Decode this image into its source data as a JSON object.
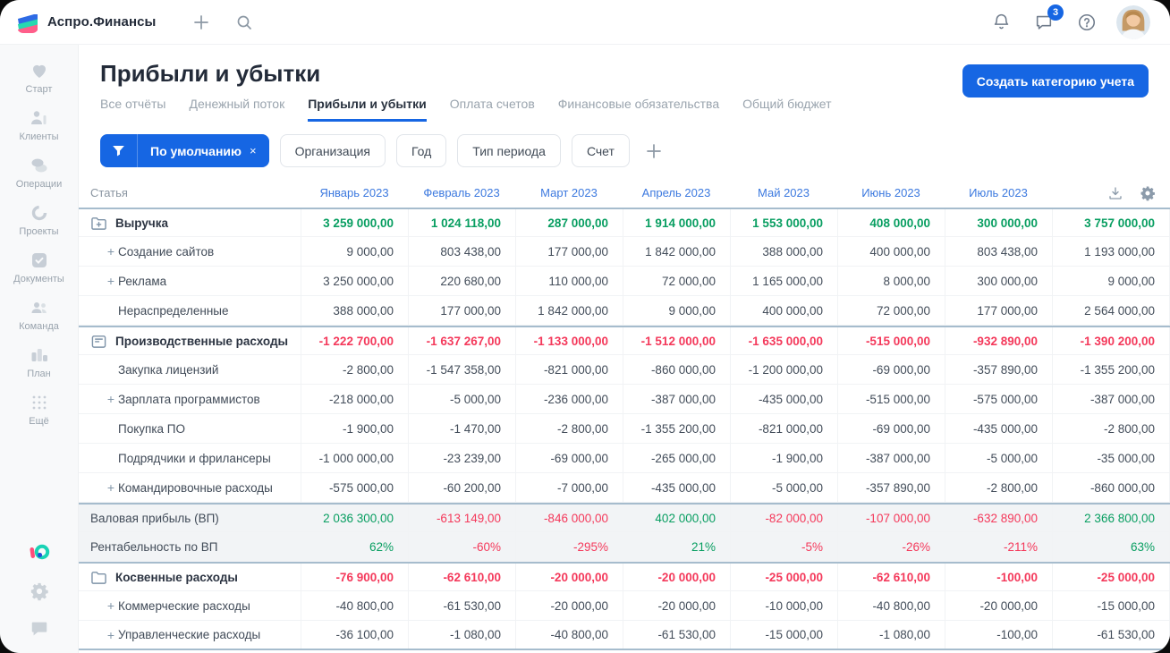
{
  "topbar": {
    "app_name": "Аспро.Финансы",
    "notifications_badge": "3",
    "icons": [
      "plus-icon",
      "search-icon",
      "bell-icon",
      "chat-icon",
      "help-icon",
      "avatar"
    ]
  },
  "sidebar": {
    "items": [
      {
        "label": "Старт",
        "icon": "start-icon"
      },
      {
        "label": "Клиенты",
        "icon": "clients-icon"
      },
      {
        "label": "Операции",
        "icon": "operations-icon"
      },
      {
        "label": "Проекты",
        "icon": "projects-icon"
      },
      {
        "label": "Документы",
        "icon": "documents-icon"
      },
      {
        "label": "Команда",
        "icon": "team-icon"
      },
      {
        "label": "План",
        "icon": "plan-icon"
      },
      {
        "label": "Ещё",
        "icon": "more-icon"
      }
    ],
    "bottom_icons": [
      "brand-icon",
      "gear-icon",
      "chat-bubble-icon"
    ]
  },
  "header": {
    "title": "Прибыли и убытки",
    "create_button": "Создать категорию учета",
    "tabs": [
      {
        "label": "Все отчёты",
        "active": false
      },
      {
        "label": "Денежный поток",
        "active": false
      },
      {
        "label": "Прибыли и убытки",
        "active": true
      },
      {
        "label": "Оплата счетов",
        "active": false
      },
      {
        "label": "Финансовые обязательства",
        "active": false
      },
      {
        "label": "Общий бюджет",
        "active": false
      }
    ]
  },
  "filters": {
    "preset": "По умолчанию",
    "preset_close": "×",
    "chips": [
      "Организация",
      "Год",
      "Тип периода",
      "Счет"
    ],
    "icons": [
      "funnel-icon",
      "add-filter-icon"
    ]
  },
  "table": {
    "first_col_header": "Статья",
    "columns": [
      "Январь 2023",
      "Февраль 2023",
      "Март 2023",
      "Апрель 2023",
      "Май 2023",
      "Июнь 2023",
      "Июль 2023",
      ""
    ],
    "header_icons": [
      "download-icon",
      "settings-icon"
    ],
    "rows": [
      {
        "label": "Выручка",
        "kind": "group",
        "icon": "folder-plus-icon",
        "tone": "green",
        "values": [
          "3 259 000,00",
          "1 024 118,00",
          "287 000,00",
          "1 914 000,00",
          "1 553 000,00",
          "408 000,00",
          "300 000,00",
          "3 757 000,00"
        ]
      },
      {
        "label": "Создание сайтов",
        "kind": "sub",
        "expandable": true,
        "values": [
          "9 000,00",
          "803 438,00",
          "177 000,00",
          "1 842 000,00",
          "388 000,00",
          "400 000,00",
          "803 438,00",
          "1 193 000,00"
        ]
      },
      {
        "label": "Реклама",
        "kind": "sub",
        "expandable": true,
        "values": [
          "3 250 000,00",
          "220 680,00",
          "110 000,00",
          "72 000,00",
          "1 165 000,00",
          "8 000,00",
          "300 000,00",
          "9 000,00"
        ]
      },
      {
        "label": "Нераспределенные",
        "kind": "sub",
        "expandable": false,
        "values": [
          "388 000,00",
          "177 000,00",
          "1 842 000,00",
          "9 000,00",
          "400 000,00",
          "72 000,00",
          "177 000,00",
          "2 564 000,00"
        ]
      },
      {
        "label": "Производственные расходы",
        "kind": "group",
        "icon": "folder-minus-icon",
        "tone": "red",
        "values": [
          "-1 222 700,00",
          "-1 637 267,00",
          "-1 133 000,00",
          "-1 512 000,00",
          "-1 635 000,00",
          "-515 000,00",
          "-932 890,00",
          "-1 390 200,00"
        ]
      },
      {
        "label": "Закупка лицензий",
        "kind": "sub",
        "expandable": false,
        "values": [
          "-2 800,00",
          "-1 547 358,00",
          "-821 000,00",
          "-860 000,00",
          "-1 200 000,00",
          "-69 000,00",
          "-357 890,00",
          "-1 355 200,00"
        ]
      },
      {
        "label": "Зарплата программистов",
        "kind": "sub",
        "expandable": true,
        "values": [
          "-218 000,00",
          "-5 000,00",
          "-236 000,00",
          "-387 000,00",
          "-435 000,00",
          "-515 000,00",
          "-575 000,00",
          "-387 000,00"
        ]
      },
      {
        "label": "Покупка ПО",
        "kind": "sub",
        "expandable": false,
        "values": [
          "-1 900,00",
          "-1 470,00",
          "-2 800,00",
          "-1 355 200,00",
          "-821 000,00",
          "-69 000,00",
          "-435 000,00",
          "-2 800,00"
        ]
      },
      {
        "label": "Подрядчики и фрилансеры",
        "kind": "sub",
        "expandable": false,
        "values": [
          "-1 000 000,00",
          "-23 239,00",
          "-69 000,00",
          "-265 000,00",
          "-1 900,00",
          "-387 000,00",
          "-5 000,00",
          "-35 000,00"
        ]
      },
      {
        "label": "Командировочные расходы",
        "kind": "sub",
        "expandable": true,
        "values": [
          "-575 000,00",
          "-60 200,00",
          "-7 000,00",
          "-435 000,00",
          "-5 000,00",
          "-357 890,00",
          "-2 800,00",
          "-860 000,00"
        ]
      },
      {
        "label": "Валовая прибыль (ВП)",
        "kind": "summary",
        "values": [
          "2 036 300,00",
          "-613 149,00",
          "-846 000,00",
          "402 000,00",
          "-82 000,00",
          "-107 000,00",
          "-632 890,00",
          "2 366 800,00"
        ]
      },
      {
        "label": "Рентабельность по ВП",
        "kind": "summary",
        "values": [
          "62%",
          "-60%",
          "-295%",
          "21%",
          "-5%",
          "-26%",
          "-211%",
          "63%"
        ]
      },
      {
        "label": "Косвенные расходы",
        "kind": "group",
        "icon": "folder-icon",
        "tone": "red",
        "values": [
          "-76 900,00",
          "-62 610,00",
          "-20 000,00",
          "-20 000,00",
          "-25 000,00",
          "-62 610,00",
          "-100,00",
          "-25 000,00"
        ]
      },
      {
        "label": "Коммерческие расходы",
        "kind": "sub",
        "expandable": true,
        "values": [
          "-40 800,00",
          "-61 530,00",
          "-20 000,00",
          "-20 000,00",
          "-10 000,00",
          "-40 800,00",
          "-20 000,00",
          "-15 000,00"
        ]
      },
      {
        "label": "Управленческие расходы",
        "kind": "sub",
        "expandable": true,
        "values": [
          "-36 100,00",
          "-1 080,00",
          "-40 800,00",
          "-61 530,00",
          "-15 000,00",
          "-1 080,00",
          "-100,00",
          "-61 530,00"
        ]
      }
    ]
  },
  "colors": {
    "accent_blue": "#1666E3",
    "month_header_blue": "#3C79DF",
    "positive_green": "#089E61",
    "negative_red": "#F4395B",
    "summary_row_bg": "#F2F4F6",
    "group_border": "#A6BCCD"
  }
}
